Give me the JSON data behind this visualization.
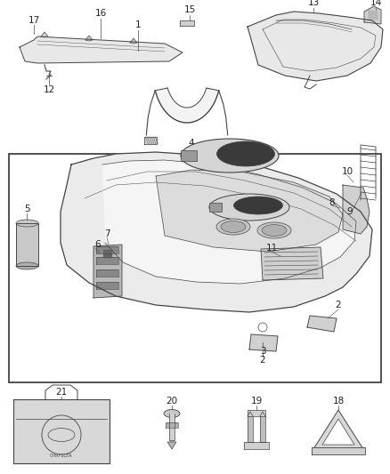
{
  "bg_color": "#ffffff",
  "border_color": "#333333",
  "line_color": "#444444",
  "fill_light": "#e8e8e8",
  "fill_mid": "#d0d0d0",
  "fill_dark": "#a0a0a0",
  "text_color": "#222222",
  "label_fontsize": 7.5,
  "fig_w": 4.38,
  "fig_h": 5.33,
  "dpi": 100
}
